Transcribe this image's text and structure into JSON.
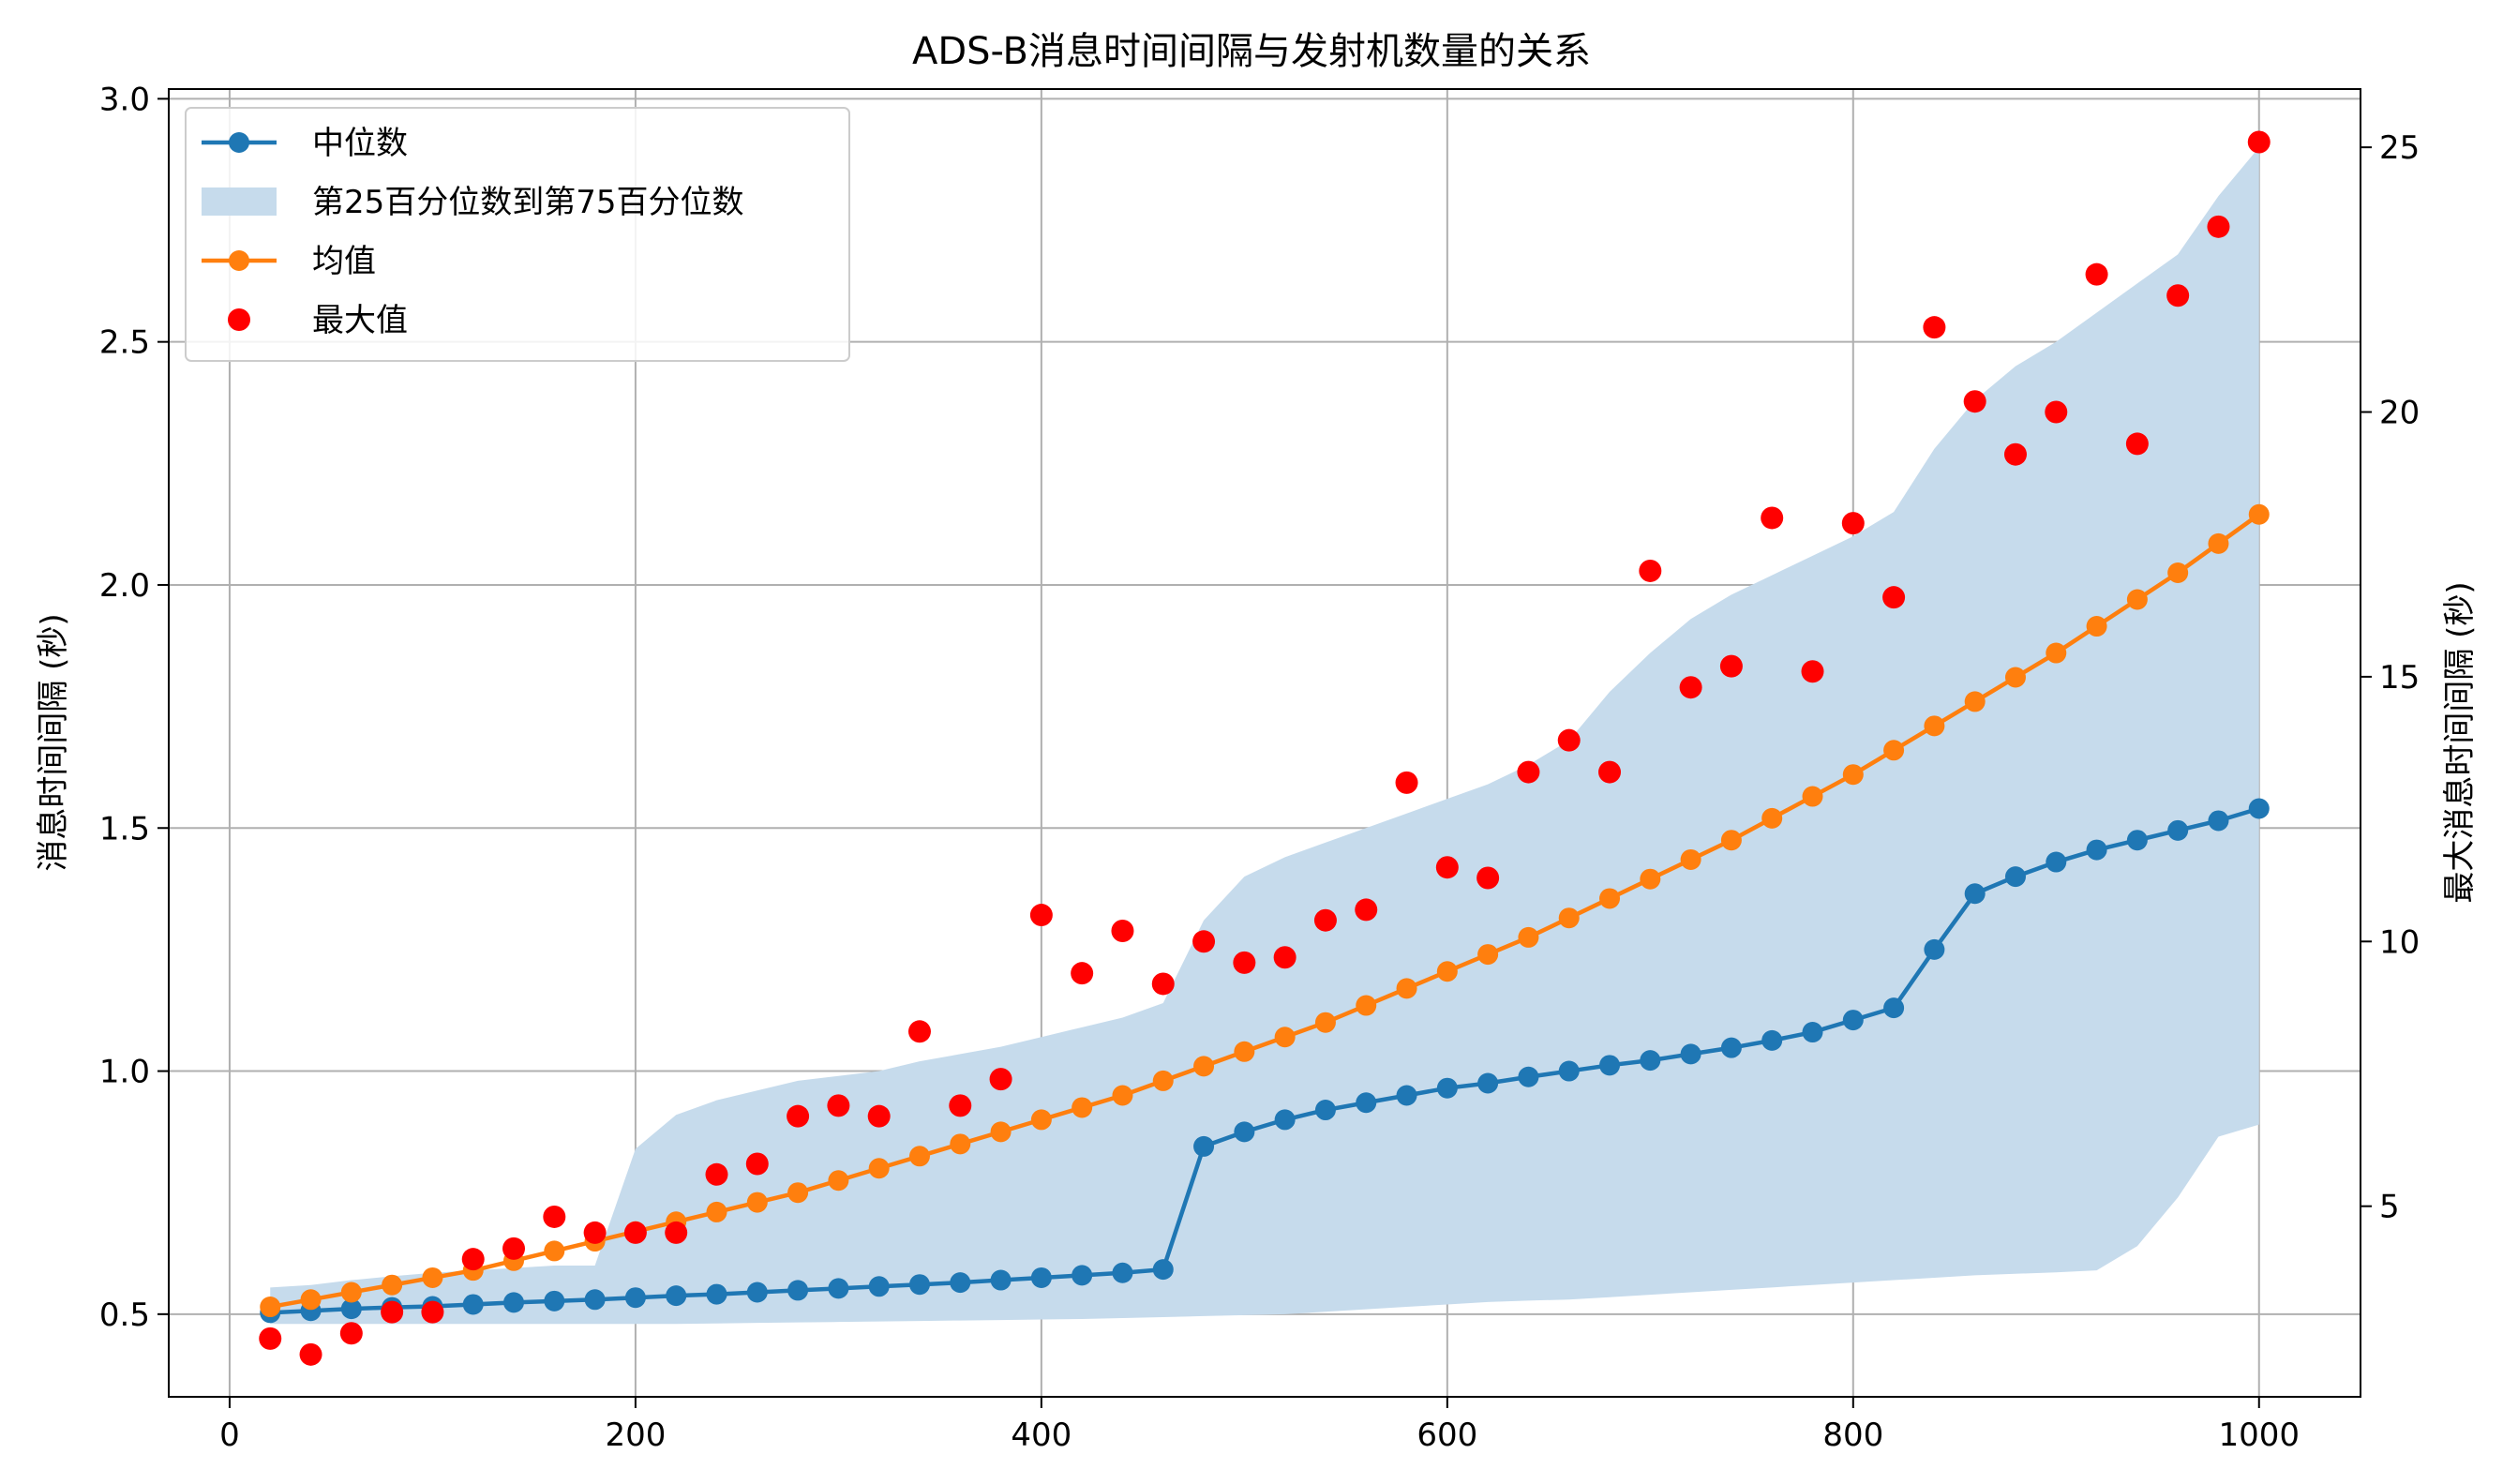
{
  "chart_data": {
    "type": "line",
    "title": "ADS-B消息时间间隔与发射机数量的关系",
    "ylabel_left": "消息时间间隔 (秒)",
    "ylabel_right": "最大消息时间间隔 (秒)",
    "xlabel": "",
    "xlim": [
      -30,
      1050
    ],
    "ylim_left": [
      0.33,
      3.02
    ],
    "ylim_right": [
      1.4,
      26.1
    ],
    "x_ticks": [
      0,
      200,
      400,
      600,
      800,
      1000
    ],
    "y_left_ticks": [
      0.5,
      1.0,
      1.5,
      2.0,
      2.5,
      3.0
    ],
    "y_left_tick_labels": [
      "0.5",
      "1.0",
      "1.5",
      "2.0",
      "2.5",
      "3.0"
    ],
    "y_right_ticks": [
      5,
      10,
      15,
      20,
      25
    ],
    "grid": true,
    "legend_position": "top-left",
    "x": [
      20,
      40,
      60,
      80,
      100,
      120,
      140,
      160,
      180,
      200,
      220,
      240,
      260,
      280,
      300,
      320,
      340,
      360,
      380,
      400,
      420,
      440,
      460,
      480,
      500,
      520,
      540,
      560,
      580,
      600,
      620,
      640,
      660,
      680,
      700,
      720,
      740,
      760,
      780,
      800,
      820,
      840,
      860,
      880,
      900,
      920,
      940,
      960,
      980,
      1000
    ],
    "series": [
      {
        "name": "中位数",
        "axis": "left",
        "color": "#1f77b4",
        "style": "line-marker",
        "values": [
          0.503,
          0.507,
          0.511,
          0.514,
          0.516,
          0.52,
          0.524,
          0.527,
          0.53,
          0.534,
          0.538,
          0.541,
          0.545,
          0.549,
          0.553,
          0.557,
          0.561,
          0.565,
          0.57,
          0.575,
          0.58,
          0.585,
          0.592,
          0.845,
          0.875,
          0.9,
          0.92,
          0.935,
          0.95,
          0.965,
          0.975,
          0.988,
          1.0,
          1.012,
          1.022,
          1.035,
          1.048,
          1.063,
          1.08,
          1.105,
          1.13,
          1.25,
          1.365,
          1.4,
          1.43,
          1.455,
          1.475,
          1.495,
          1.515,
          1.54
        ]
      },
      {
        "name": "第25百分位数到第75百分位数",
        "axis": "left",
        "color": "#c6dbec",
        "style": "band",
        "lower": [
          0.48,
          0.48,
          0.48,
          0.48,
          0.48,
          0.48,
          0.48,
          0.48,
          0.48,
          0.48,
          0.48,
          0.481,
          0.482,
          0.483,
          0.484,
          0.485,
          0.486,
          0.487,
          0.488,
          0.489,
          0.49,
          0.492,
          0.494,
          0.496,
          0.498,
          0.5,
          0.505,
          0.51,
          0.515,
          0.52,
          0.525,
          0.528,
          0.53,
          0.535,
          0.54,
          0.545,
          0.55,
          0.555,
          0.56,
          0.565,
          0.57,
          0.575,
          0.58,
          0.583,
          0.586,
          0.59,
          0.64,
          0.74,
          0.865,
          0.89
        ],
        "upper": [
          0.555,
          0.56,
          0.57,
          0.578,
          0.585,
          0.59,
          0.595,
          0.6,
          0.6,
          0.84,
          0.91,
          0.94,
          0.96,
          0.98,
          0.99,
          1.0,
          1.02,
          1.035,
          1.05,
          1.07,
          1.09,
          1.11,
          1.14,
          1.31,
          1.4,
          1.44,
          1.47,
          1.5,
          1.53,
          1.56,
          1.59,
          1.63,
          1.68,
          1.78,
          1.86,
          1.93,
          1.98,
          2.02,
          2.06,
          2.1,
          2.15,
          2.28,
          2.38,
          2.45,
          2.5,
          2.56,
          2.62,
          2.68,
          2.8,
          2.9
        ]
      },
      {
        "name": "均值",
        "axis": "left",
        "color": "#ff7f0e",
        "style": "line-marker",
        "values": [
          0.515,
          0.53,
          0.545,
          0.56,
          0.575,
          0.59,
          0.61,
          0.63,
          0.65,
          0.67,
          0.69,
          0.71,
          0.73,
          0.75,
          0.775,
          0.8,
          0.825,
          0.85,
          0.875,
          0.9,
          0.925,
          0.95,
          0.98,
          1.01,
          1.04,
          1.07,
          1.1,
          1.135,
          1.17,
          1.205,
          1.24,
          1.275,
          1.315,
          1.355,
          1.395,
          1.435,
          1.475,
          1.52,
          1.565,
          1.61,
          1.66,
          1.71,
          1.76,
          1.81,
          1.86,
          1.915,
          1.97,
          2.025,
          2.085,
          2.145
        ]
      },
      {
        "name": "最大值",
        "axis": "right",
        "color": "#ff0000",
        "style": "scatter",
        "values": [
          2.5,
          2.2,
          2.6,
          3.0,
          3.0,
          4.0,
          4.2,
          4.8,
          4.5,
          4.5,
          4.5,
          5.6,
          5.8,
          6.7,
          6.9,
          6.7,
          8.3,
          6.9,
          7.4,
          10.5,
          9.4,
          10.2,
          9.2,
          10.0,
          9.6,
          9.7,
          10.4,
          10.6,
          13.0,
          11.4,
          11.2,
          13.2,
          13.8,
          13.2,
          17.0,
          14.8,
          15.2,
          18.0,
          15.1,
          17.9,
          16.5,
          21.6,
          20.2,
          19.2,
          20.0,
          22.6,
          19.4,
          22.2,
          23.5,
          25.1
        ]
      }
    ]
  }
}
